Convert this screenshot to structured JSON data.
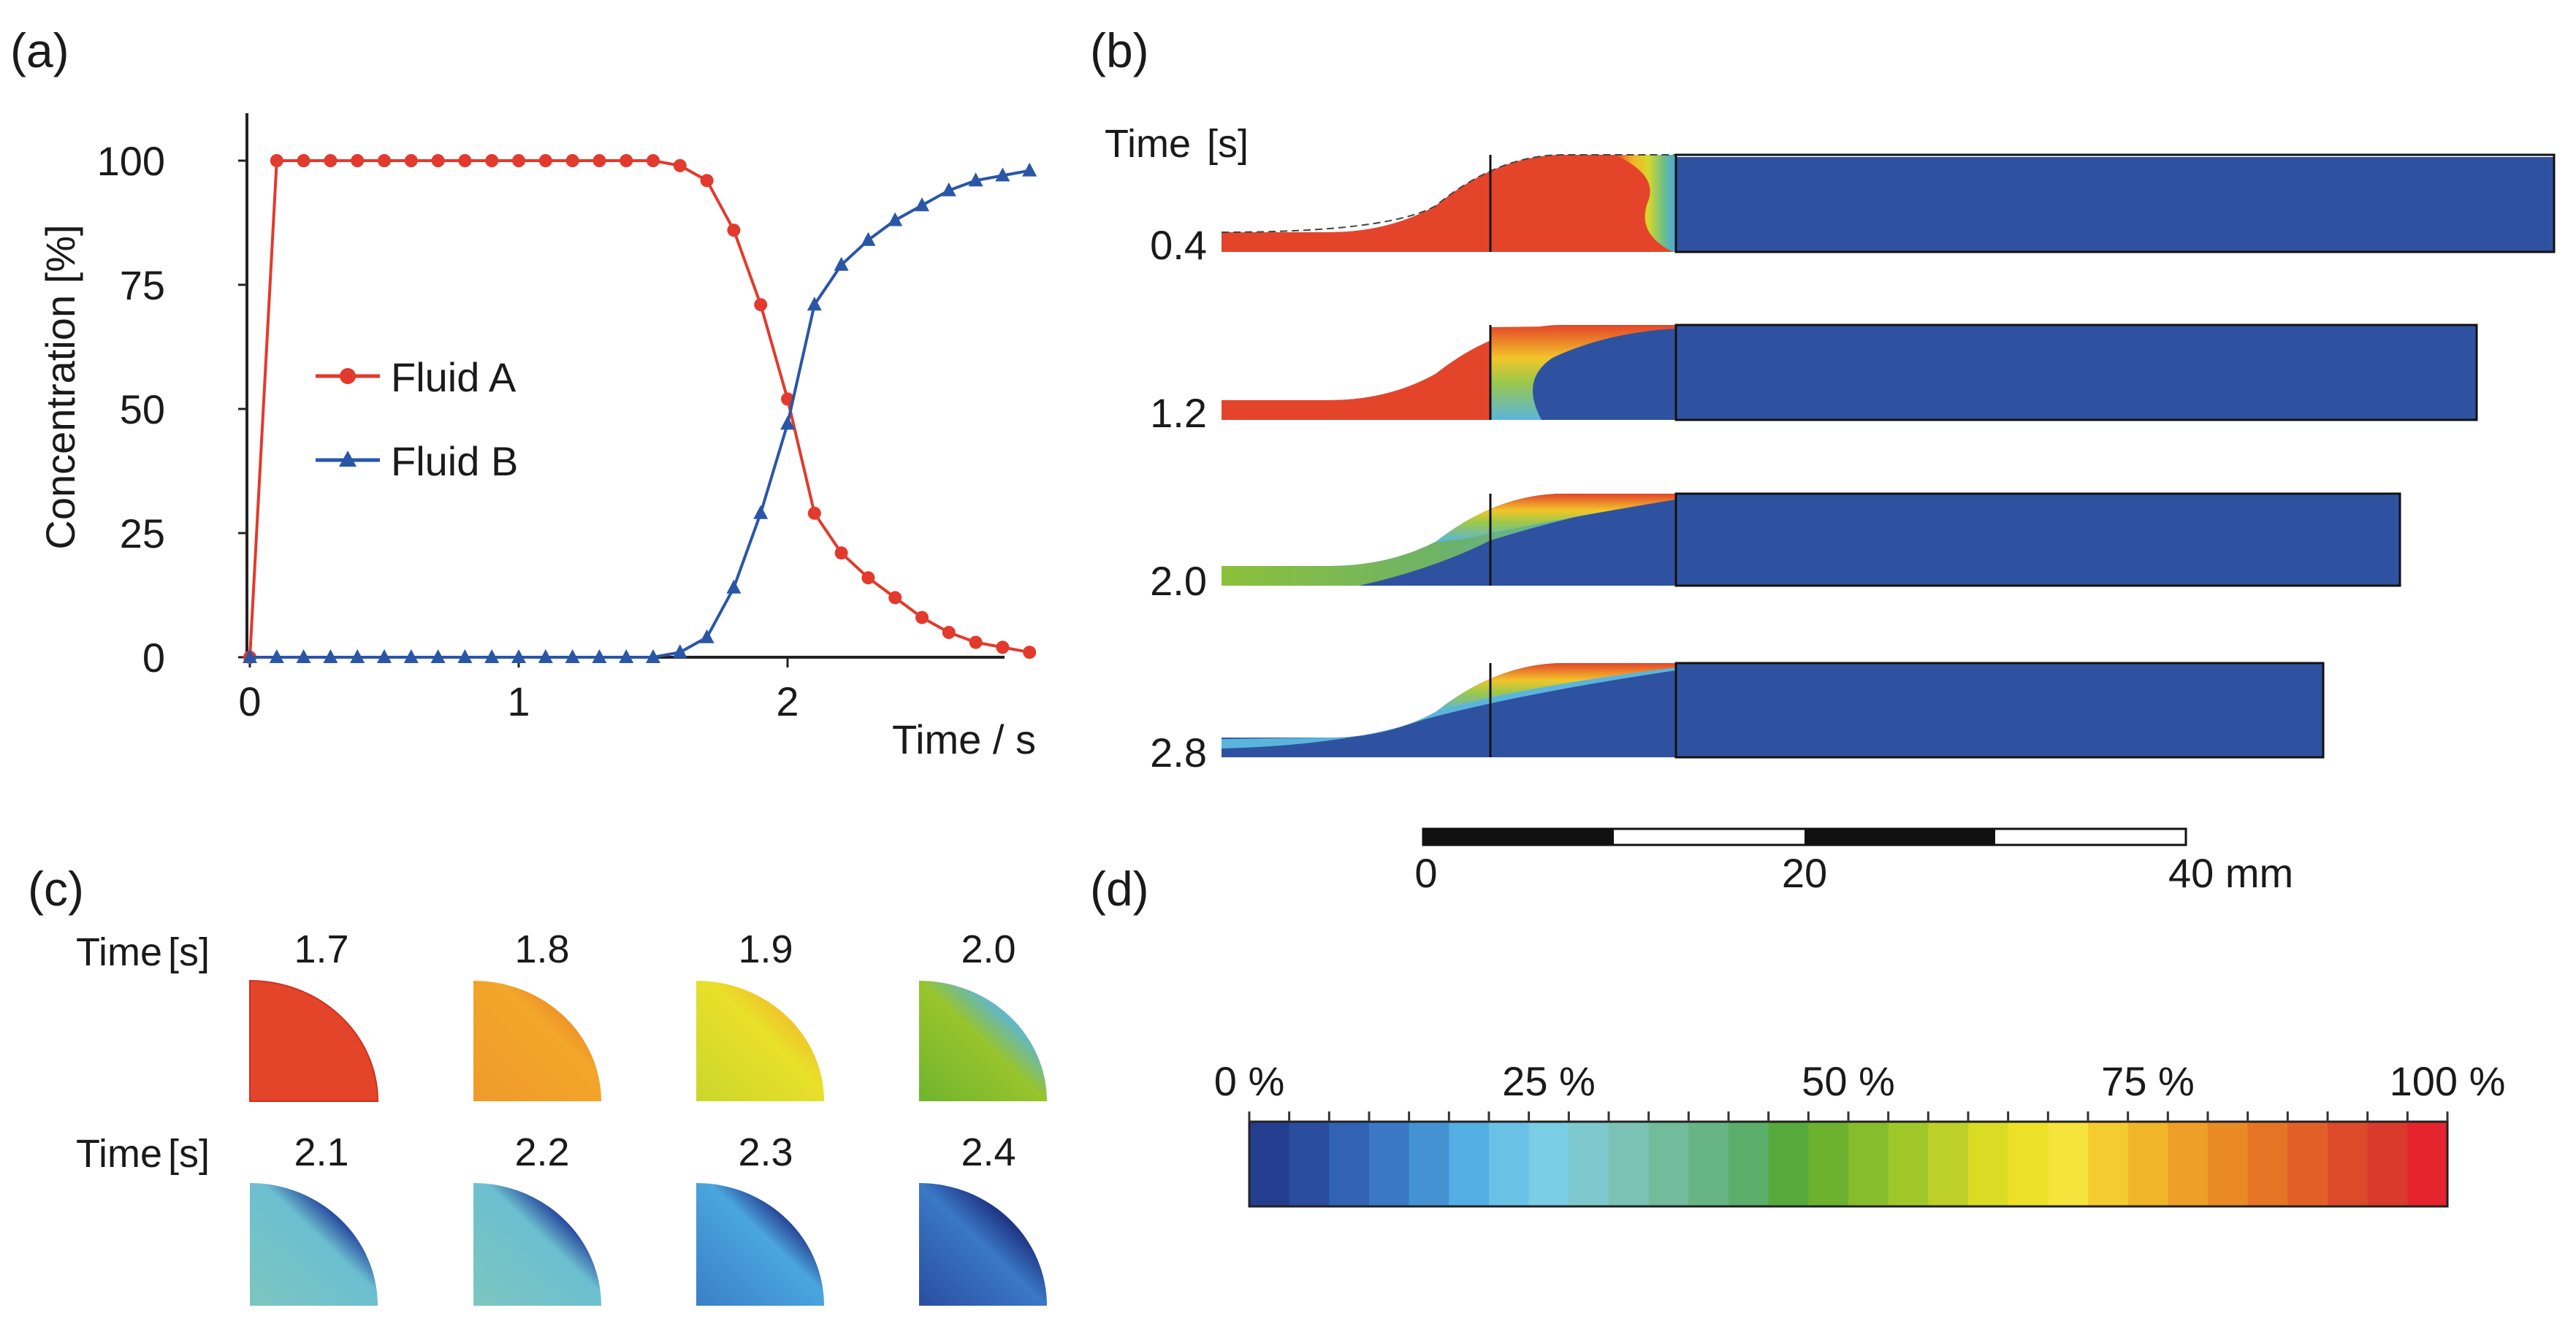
{
  "panel_labels": {
    "a": "(a)",
    "b": "(b)",
    "c": "(c)",
    "d": "(d)"
  },
  "colors": {
    "fluid_a": "#e23a2c",
    "fluid_b": "#2a56a8",
    "flow_red": "#e4452a",
    "flow_blue": "#2f52a0",
    "frame": "#222222"
  },
  "chart_data": [
    {
      "type": "line",
      "panel": "a",
      "title": "",
      "xlabel": "Time / s",
      "ylabel": "Concentration [%]",
      "xlim": [
        0,
        2.9
      ],
      "ylim": [
        0,
        110
      ],
      "xticks": [
        "0",
        "1",
        "2"
      ],
      "yticks": [
        "0",
        "25",
        "50",
        "75",
        "100"
      ],
      "legend_position": "center-left",
      "series": [
        {
          "name": "Fluid A",
          "marker": "circle",
          "color": "#e23a2c",
          "x": [
            0,
            0.1,
            0.2,
            0.3,
            0.4,
            0.5,
            0.6,
            0.7,
            0.8,
            0.9,
            1.0,
            1.1,
            1.2,
            1.3,
            1.4,
            1.5,
            1.6,
            1.7,
            1.8,
            1.9,
            2.0,
            2.1,
            2.2,
            2.3,
            2.4,
            2.5,
            2.6,
            2.7,
            2.8,
            2.9
          ],
          "values": [
            0,
            100,
            100,
            100,
            100,
            100,
            100,
            100,
            100,
            100,
            100,
            100,
            100,
            100,
            100,
            100,
            99,
            96,
            86,
            71,
            52,
            29,
            21,
            16,
            12,
            8,
            5,
            3,
            2,
            1
          ]
        },
        {
          "name": "Fluid B",
          "marker": "triangle",
          "color": "#2a56a8",
          "x": [
            0,
            0.1,
            0.2,
            0.3,
            0.4,
            0.5,
            0.6,
            0.7,
            0.8,
            0.9,
            1.0,
            1.1,
            1.2,
            1.3,
            1.4,
            1.5,
            1.6,
            1.7,
            1.8,
            1.9,
            2.0,
            2.1,
            2.2,
            2.3,
            2.4,
            2.5,
            2.6,
            2.7,
            2.8,
            2.9
          ],
          "values": [
            0,
            0,
            0,
            0,
            0,
            0,
            0,
            0,
            0,
            0,
            0,
            0,
            0,
            0,
            0,
            0,
            1,
            4,
            14,
            29,
            47,
            71,
            79,
            84,
            88,
            91,
            94,
            96,
            97,
            98
          ]
        }
      ]
    },
    {
      "type": "colorbar",
      "panel": "d",
      "title": "",
      "tick_labels": [
        "0 %",
        "25 %",
        "50 %",
        "75 %",
        "100 %"
      ],
      "range": [
        0,
        100
      ],
      "colors": [
        "#253d8f",
        "#2b4da0",
        "#3162b3",
        "#3a78c6",
        "#4592d3",
        "#53aee3",
        "#69c2e6",
        "#79cde4",
        "#7ec9cd",
        "#7cc2b4",
        "#72bb9b",
        "#67b585",
        "#5aae6a",
        "#56aa3b",
        "#6cb22f",
        "#86bd2c",
        "#a0c829",
        "#bdd02a",
        "#d9db24",
        "#ece128",
        "#f6e33b",
        "#f4cc2f",
        "#f1b52a",
        "#ee9f27",
        "#e98a25",
        "#e57525",
        "#e26027",
        "#dd4a29",
        "#d93a2c",
        "#e5242d"
      ]
    }
  ],
  "panel_b": {
    "time_header": "Time",
    "time_unit": "[s]",
    "times": [
      "0.4",
      "1.2",
      "2.0",
      "2.8"
    ],
    "scale_bar": {
      "labels": [
        "0",
        "20",
        "40 mm"
      ],
      "max_mm": 40,
      "tick_mm": [
        0,
        20,
        40
      ]
    }
  },
  "panel_c": {
    "time_label": "Time",
    "time_unit": "[s]",
    "row1_times": [
      "1.7",
      "1.8",
      "1.9",
      "2.0"
    ],
    "row2_times": [
      "2.1",
      "2.2",
      "2.3",
      "2.4"
    ]
  }
}
